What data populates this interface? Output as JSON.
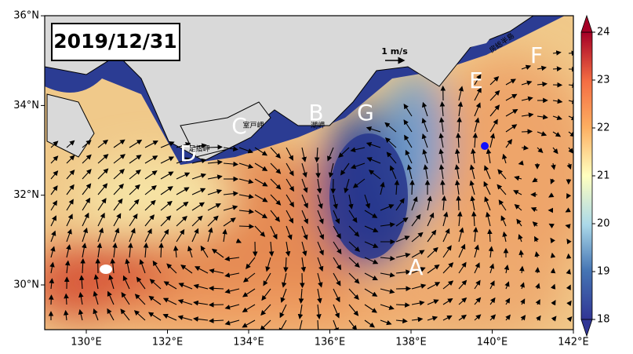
{
  "title": "2019/12/31",
  "scale_label": "1 m/s",
  "x_ticks": [
    "130°E",
    "132°E",
    "134°E",
    "136°E",
    "138°E",
    "140°E",
    "142°E"
  ],
  "y_ticks": [
    "30°N",
    "32°N",
    "34°N",
    "36°N"
  ],
  "region_labels": [
    "A",
    "B",
    "C",
    "D",
    "E",
    "F",
    "G"
  ],
  "place_labels": [
    "室戸岬",
    "潮岬",
    "足摺岬",
    "房総半島"
  ],
  "colorbar": {
    "ticks": [
      18,
      19,
      20,
      21,
      22,
      23,
      24
    ]
  }
}
